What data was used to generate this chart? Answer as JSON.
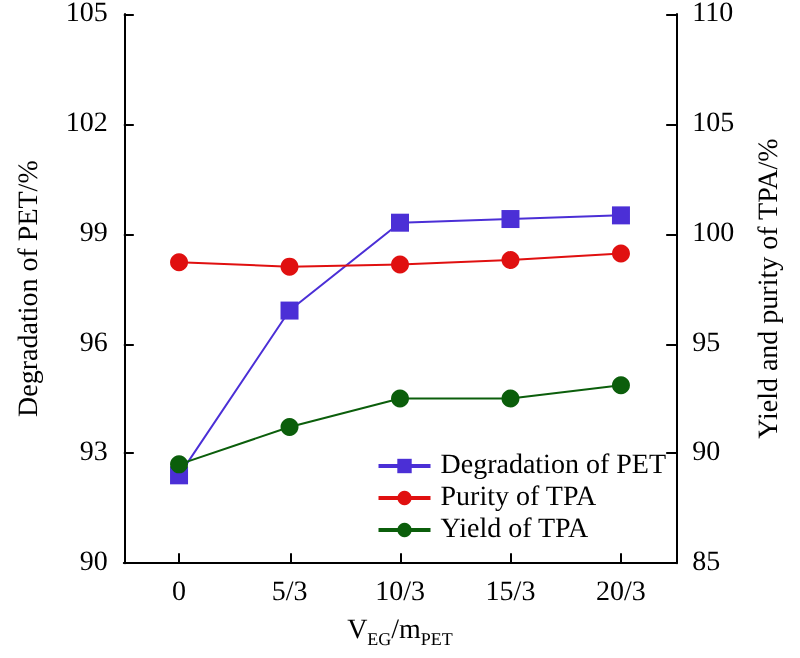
{
  "chart_data": {
    "type": "line",
    "categories": [
      "0",
      "5/3",
      "10/3",
      "15/3",
      "20/3"
    ],
    "xlabel": "V$_{EG}$/m$_{PET}$",
    "ylabel": "Degradation of PET/%",
    "y2label": "Yield and purity of TPA/%",
    "ylim": [
      90,
      105
    ],
    "yticks": [
      90,
      93,
      96,
      99,
      102,
      105
    ],
    "y2lim": [
      85,
      110
    ],
    "y2ticks": [
      85,
      90,
      95,
      100,
      105,
      110
    ],
    "grid": false,
    "legend": "bottom right",
    "series": [
      {
        "name": "Degradation of PET",
        "color": "#4b2fd6",
        "marker": "square",
        "values": [
          92.4,
          96.9,
          99.3,
          99.4,
          99.5
        ]
      },
      {
        "name": "Purity of TPA",
        "color": "#e01010",
        "marker": "circle",
        "axis": "y2",
        "values": [
          98.7,
          98.5,
          98.6,
          98.8,
          99.1
        ]
      },
      {
        "name": "Yield of TPA",
        "color": "#0b5e0b",
        "marker": "circle",
        "axis": "y2",
        "values": [
          89.5,
          91.2,
          92.5,
          92.5,
          93.1
        ]
      }
    ]
  }
}
